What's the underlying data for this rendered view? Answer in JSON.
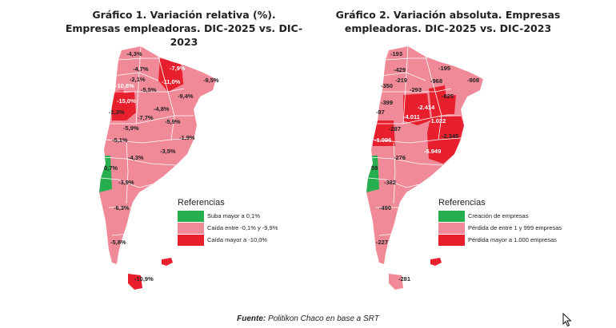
{
  "charts": [
    {
      "title": "Gráfico 1. Variación relativa (%). Empresas empleadoras. DIC-2025 vs. DIC-2023",
      "legend_title": "Referencias",
      "legend": [
        {
          "label": "Suba mayor a 0,1%",
          "color": "#27ae4f"
        },
        {
          "label": "Caída entre -0,1% y -9,9%",
          "color": "#f08a98"
        },
        {
          "label": "Caída mayor a -10,0%",
          "color": "#e8202d"
        }
      ],
      "labels": [
        "-4,3%",
        "-7,9%",
        "-4,7%",
        "-2,1%",
        "-11,0%",
        "-9,5%",
        "-10,8%",
        "-5,5%",
        "-15,0%",
        "-9,4%",
        "-1,3%",
        "-4,8%",
        "-7,7%",
        "-5,9%",
        "-5,9%",
        "-1,9%",
        "-5,1%",
        "-3,5%",
        "-4,3%",
        "0,7%",
        "-3,9%",
        "-6,3%",
        "-5,8%",
        "-10,9%"
      ]
    },
    {
      "title": "Gráfico 2. Variación absoluta. Empresas empleadoras. DIC-2025 vs. DIC-2023",
      "legend_title": "Referencias",
      "legend": [
        {
          "label": "Creación de empresas",
          "color": "#27ae4f"
        },
        {
          "label": "Pérdida de entre 1 y 999 empresas",
          "color": "#f08a98"
        },
        {
          "label": "Pérdida mayor a 1.000 empresas",
          "color": "#e8202d"
        }
      ],
      "labels": [
        "-193",
        "-195",
        "-429",
        "-908",
        "-219",
        "-968",
        "-350",
        "-293",
        "-825",
        "-399",
        "-2.414",
        "-87",
        "-4.011",
        "-1.022",
        "-287",
        "-2.345",
        "-1.096",
        "-5.949",
        "-276",
        "59",
        "-382",
        "-490",
        "-227",
        "-281"
      ]
    }
  ],
  "footnote": {
    "source_label": "Fuente:",
    "text": " Politikon Chaco en base a SRT"
  }
}
